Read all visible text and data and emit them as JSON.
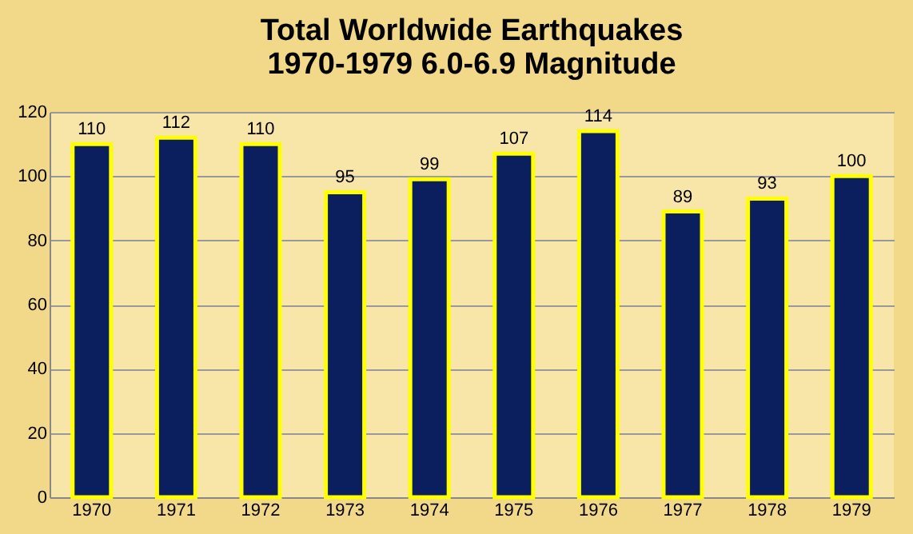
{
  "chart_data": {
    "type": "bar",
    "title": "Total Worldwide Earthquakes\n1970-1979  6.0-6.9 Magnitude",
    "categories": [
      "1970",
      "1971",
      "1972",
      "1973",
      "1974",
      "1975",
      "1976",
      "1977",
      "1978",
      "1979"
    ],
    "values": [
      110,
      112,
      110,
      95,
      99,
      107,
      114,
      89,
      93,
      100
    ],
    "color": "#0b1f5e",
    "ylim": [
      0,
      120
    ],
    "yticks": [
      0,
      20,
      40,
      60,
      80,
      100,
      120
    ],
    "grid": "y",
    "data_labels": true
  }
}
